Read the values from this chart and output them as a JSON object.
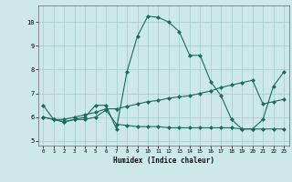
{
  "xlabel": "Humidex (Indice chaleur)",
  "bg_color": "#cce8e8",
  "grid_color": "#aacfcf",
  "line_color": "#1a6b5a",
  "xlim": [
    -0.5,
    23.5
  ],
  "ylim": [
    4.8,
    10.7
  ],
  "yticks": [
    5,
    6,
    7,
    8,
    9,
    10
  ],
  "xticks": [
    0,
    1,
    2,
    3,
    4,
    5,
    6,
    7,
    8,
    9,
    10,
    11,
    12,
    13,
    14,
    15,
    16,
    17,
    18,
    19,
    20,
    21,
    22,
    23
  ],
  "line1_x": [
    0,
    1,
    2,
    3,
    4,
    5,
    6,
    7,
    8,
    9,
    10,
    11,
    12,
    13,
    14,
    15,
    16,
    17,
    18,
    19,
    20,
    21,
    22,
    23
  ],
  "line1_y": [
    6.5,
    5.9,
    5.8,
    5.9,
    6.0,
    6.5,
    6.5,
    5.5,
    7.9,
    9.4,
    10.25,
    10.2,
    10.0,
    9.6,
    8.6,
    8.6,
    7.5,
    6.9,
    5.9,
    5.5,
    5.5,
    5.9,
    7.3,
    7.9
  ],
  "line2_x": [
    0,
    1,
    2,
    3,
    4,
    5,
    6,
    7,
    8,
    9,
    10,
    11,
    12,
    13,
    14,
    15,
    16,
    17,
    18,
    19,
    20,
    21,
    22,
    23
  ],
  "line2_y": [
    6.0,
    5.9,
    5.8,
    5.9,
    5.9,
    6.0,
    6.3,
    5.7,
    5.65,
    5.6,
    5.6,
    5.6,
    5.55,
    5.55,
    5.55,
    5.55,
    5.55,
    5.55,
    5.55,
    5.5,
    5.5,
    5.5,
    5.5,
    5.5
  ],
  "line3_x": [
    0,
    1,
    2,
    3,
    4,
    5,
    6,
    7,
    8,
    9,
    10,
    11,
    12,
    13,
    14,
    15,
    16,
    17,
    18,
    19,
    20,
    21,
    22,
    23
  ],
  "line3_y": [
    6.0,
    5.9,
    5.9,
    6.0,
    6.1,
    6.2,
    6.35,
    6.35,
    6.45,
    6.55,
    6.65,
    6.7,
    6.8,
    6.85,
    6.9,
    7.0,
    7.1,
    7.25,
    7.35,
    7.45,
    7.55,
    6.55,
    6.65,
    6.75
  ]
}
